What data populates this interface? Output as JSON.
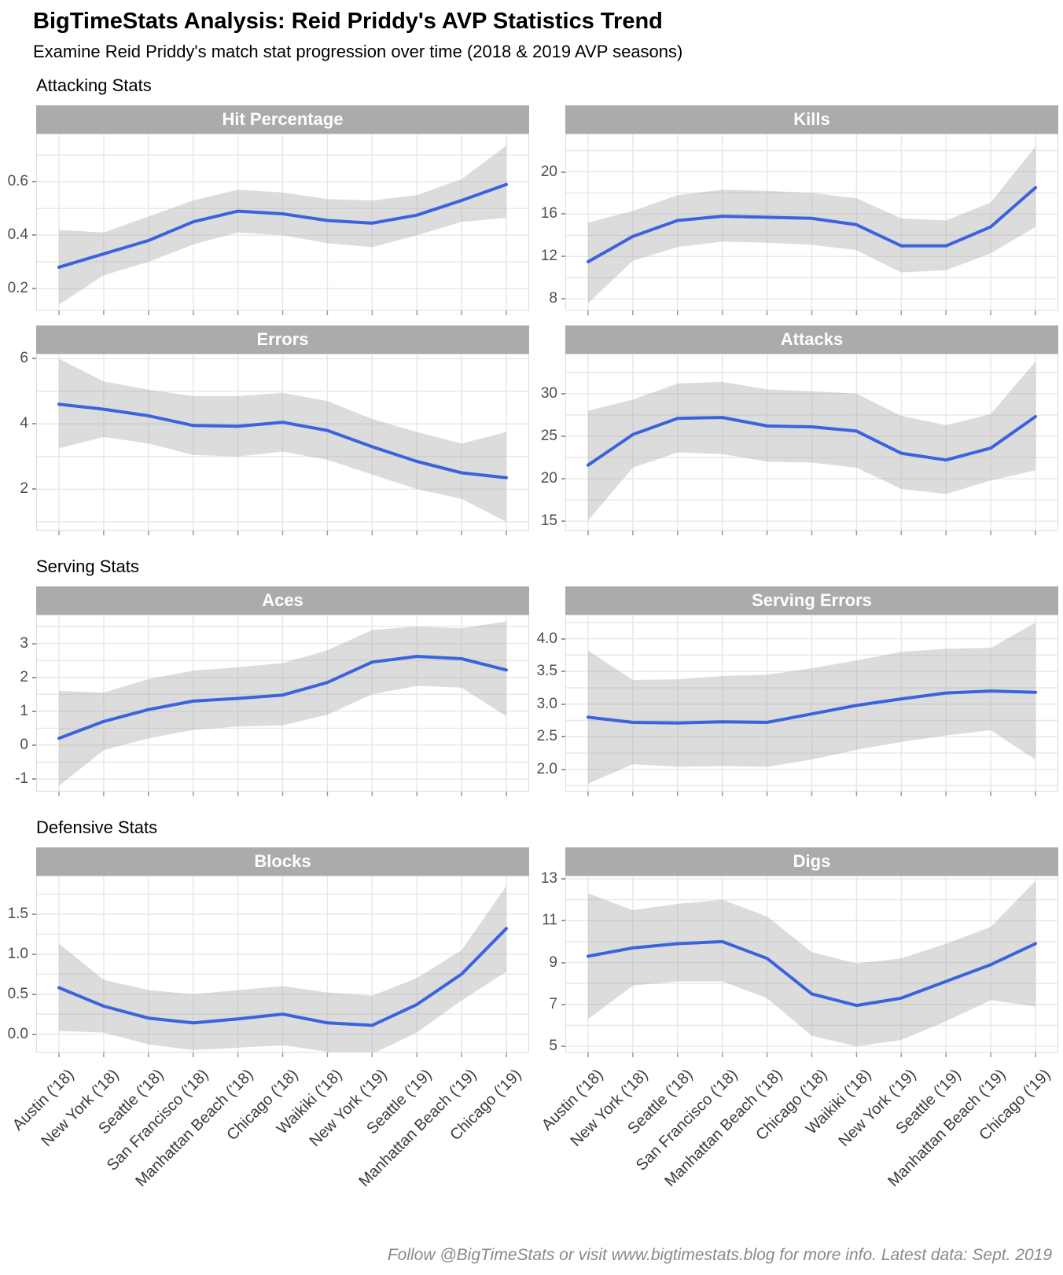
{
  "header": {
    "title": "BigTimeStats Analysis: Reid Priddy's AVP Statistics Trend",
    "subtitle": "Examine Reid Priddy's match stat progression over time (2018 & 2019 AVP seasons)"
  },
  "footer": {
    "caption": "Follow @BigTimeStats or visit www.bigtimestats.blog for more info. Latest data: Sept. 2019"
  },
  "colors": {
    "line": "#3B63DE",
    "ribbon": "rgba(168,168,168,0.40)",
    "strip_bg": "#ABABAB",
    "strip_text": "#FFFFFF",
    "grid": "#E7E7E7",
    "panel_border": "#DCDCDC",
    "tick": "#9A9A9A",
    "tick_label": "#4D4D4D",
    "x_label": "#3A3A3A"
  },
  "categories": [
    "Austin ('18)",
    "New York ('18)",
    "Seattle ('18)",
    "San Francisco ('18)",
    "Manhattan Beach ('18)",
    "Chicago ('18)",
    "Waikiki ('18)",
    "New York ('19)",
    "Seattle ('19)",
    "Manhattan Beach ('19)",
    "Chicago ('19)"
  ],
  "sections": [
    {
      "label": "Attacking Stats",
      "panel_ids": [
        "hit_percentage",
        "kills",
        "errors",
        "attacks"
      ],
      "show_x_labels": false
    },
    {
      "label": "Serving Stats",
      "panel_ids": [
        "aces",
        "serving_errors"
      ],
      "show_x_labels": false
    },
    {
      "label": "Defensive Stats",
      "panel_ids": [
        "blocks",
        "digs"
      ],
      "show_x_labels": true
    }
  ],
  "chart_data": [
    {
      "id": "hit_percentage",
      "type": "line",
      "title": "Hit Percentage",
      "ylim": [
        0.118,
        0.78
      ],
      "grid_step": 0.1,
      "ytick_values": [
        0.2,
        0.4,
        0.6
      ],
      "ytick_labels": [
        "0.2",
        "0.4",
        "0.6"
      ],
      "values": [
        0.28,
        0.33,
        0.38,
        0.45,
        0.49,
        0.48,
        0.455,
        0.445,
        0.475,
        0.53,
        0.59
      ],
      "band_upper": [
        0.42,
        0.41,
        0.47,
        0.53,
        0.57,
        0.56,
        0.535,
        0.53,
        0.55,
        0.61,
        0.735
      ],
      "band_lower": [
        0.14,
        0.25,
        0.3,
        0.365,
        0.41,
        0.4,
        0.37,
        0.355,
        0.4,
        0.45,
        0.465
      ]
    },
    {
      "id": "kills",
      "type": "line",
      "title": "Kills",
      "ylim": [
        6.9,
        23.6
      ],
      "grid_step": 2,
      "ytick_values": [
        8,
        12,
        16,
        20
      ],
      "ytick_labels": [
        "8",
        "12",
        "16",
        "20"
      ],
      "values": [
        11.5,
        13.9,
        15.4,
        15.8,
        15.7,
        15.6,
        15.0,
        13.0,
        13.0,
        14.8,
        18.5
      ],
      "band_upper": [
        15.2,
        16.3,
        17.8,
        18.3,
        18.2,
        18.0,
        17.5,
        15.6,
        15.4,
        17.1,
        22.4
      ],
      "band_lower": [
        7.6,
        11.6,
        12.9,
        13.4,
        13.3,
        13.1,
        12.6,
        10.5,
        10.7,
        12.3,
        14.8
      ]
    },
    {
      "id": "errors",
      "type": "line",
      "title": "Errors",
      "ylim": [
        0.73,
        6.15
      ],
      "grid_step": 1,
      "ytick_values": [
        2,
        4,
        6
      ],
      "ytick_labels": [
        "2",
        "4",
        "6"
      ],
      "values": [
        4.6,
        4.45,
        4.25,
        3.95,
        3.93,
        4.05,
        3.8,
        3.3,
        2.85,
        2.5,
        2.35
      ],
      "band_upper": [
        6.0,
        5.3,
        5.05,
        4.85,
        4.85,
        4.95,
        4.7,
        4.15,
        3.75,
        3.4,
        3.75
      ],
      "band_lower": [
        3.25,
        3.6,
        3.4,
        3.05,
        3.0,
        3.15,
        2.9,
        2.45,
        2.0,
        1.7,
        1.0
      ]
    },
    {
      "id": "attacks",
      "type": "line",
      "title": "Attacks",
      "ylim": [
        13.9,
        34.7
      ],
      "grid_step": 2.5,
      "ytick_values": [
        15,
        20,
        25,
        30
      ],
      "ytick_labels": [
        "15",
        "20",
        "25",
        "30"
      ],
      "values": [
        21.6,
        25.2,
        27.1,
        27.2,
        26.2,
        26.1,
        25.6,
        23.0,
        22.2,
        23.6,
        27.3
      ],
      "band_upper": [
        28.0,
        29.3,
        31.2,
        31.4,
        30.5,
        30.3,
        30.0,
        27.4,
        26.3,
        27.6,
        33.8
      ],
      "band_lower": [
        15.1,
        21.3,
        23.1,
        22.9,
        22.0,
        21.9,
        21.3,
        18.8,
        18.2,
        19.8,
        21.0
      ]
    },
    {
      "id": "aces",
      "type": "line",
      "title": "Aces",
      "ylim": [
        -1.37,
        3.85
      ],
      "grid_step": 0.5,
      "ytick_values": [
        -1,
        0,
        1,
        2,
        3
      ],
      "ytick_labels": [
        "-1",
        "0",
        "1",
        "2",
        "3"
      ],
      "values": [
        0.2,
        0.7,
        1.05,
        1.3,
        1.38,
        1.48,
        1.85,
        2.45,
        2.62,
        2.55,
        2.22
      ],
      "band_upper": [
        1.6,
        1.55,
        1.95,
        2.2,
        2.3,
        2.42,
        2.8,
        3.4,
        3.5,
        3.45,
        3.65
      ],
      "band_lower": [
        -1.2,
        -0.15,
        0.2,
        0.45,
        0.55,
        0.58,
        0.9,
        1.5,
        1.75,
        1.7,
        0.85
      ]
    },
    {
      "id": "serving_errors",
      "type": "line",
      "title": "Serving Errors",
      "ylim": [
        1.66,
        4.37
      ],
      "grid_step": 0.25,
      "ytick_values": [
        2.0,
        2.5,
        3.0,
        3.5,
        4.0
      ],
      "ytick_labels": [
        "2.0",
        "2.5",
        "3.0",
        "3.5",
        "4.0"
      ],
      "values": [
        2.8,
        2.72,
        2.71,
        2.73,
        2.72,
        2.85,
        2.98,
        3.08,
        3.17,
        3.2,
        3.18
      ],
      "band_upper": [
        3.82,
        3.37,
        3.38,
        3.43,
        3.45,
        3.55,
        3.67,
        3.8,
        3.85,
        3.86,
        4.25
      ],
      "band_lower": [
        1.78,
        2.08,
        2.04,
        2.05,
        2.04,
        2.15,
        2.3,
        2.42,
        2.52,
        2.6,
        2.15
      ]
    },
    {
      "id": "blocks",
      "type": "line",
      "title": "Blocks",
      "ylim": [
        -0.23,
        1.98
      ],
      "grid_step": 0.25,
      "ytick_values": [
        0.0,
        0.5,
        1.0,
        1.5
      ],
      "ytick_labels": [
        "0.0",
        "0.5",
        "1.0",
        "1.5"
      ],
      "values": [
        0.58,
        0.35,
        0.2,
        0.14,
        0.19,
        0.25,
        0.14,
        0.11,
        0.37,
        0.75,
        1.32
      ],
      "band_upper": [
        1.13,
        0.68,
        0.55,
        0.5,
        0.55,
        0.6,
        0.52,
        0.48,
        0.7,
        1.05,
        1.85
      ],
      "band_lower": [
        0.04,
        0.02,
        -0.13,
        -0.2,
        -0.17,
        -0.14,
        -0.22,
        -0.25,
        0.02,
        0.42,
        0.78
      ]
    },
    {
      "id": "digs",
      "type": "line",
      "title": "Digs",
      "ylim": [
        4.7,
        13.15
      ],
      "grid_step": 1,
      "ytick_values": [
        5,
        7,
        9,
        11,
        13
      ],
      "ytick_labels": [
        "5",
        "7",
        "9",
        "11",
        "13"
      ],
      "values": [
        9.3,
        9.7,
        9.9,
        10.0,
        9.2,
        7.5,
        6.95,
        7.3,
        8.1,
        8.9,
        9.9
      ],
      "band_upper": [
        12.3,
        11.5,
        11.8,
        12.0,
        11.2,
        9.5,
        8.95,
        9.2,
        9.9,
        10.7,
        12.9
      ],
      "band_lower": [
        6.3,
        7.9,
        8.1,
        8.1,
        7.3,
        5.5,
        5.0,
        5.3,
        6.2,
        7.2,
        6.9
      ]
    }
  ]
}
